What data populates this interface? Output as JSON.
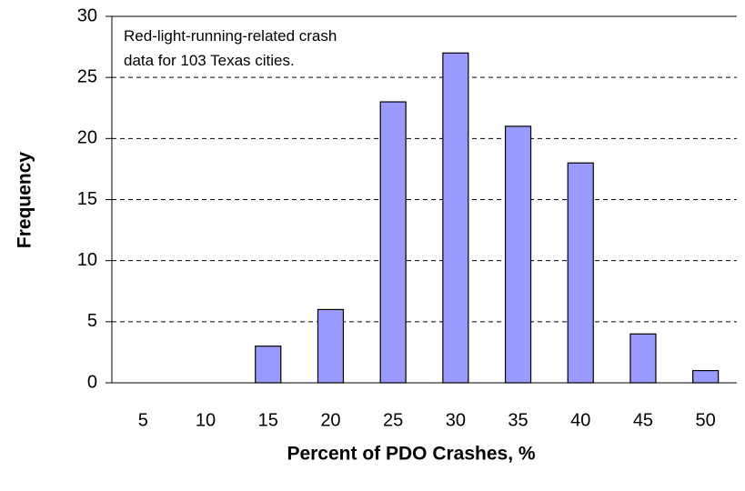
{
  "chart_data": {
    "type": "bar",
    "annotation": [
      "Red-light-running-related crash",
      "data for 103 Texas cities."
    ],
    "x_label": "Percent of PDO Crashes, %",
    "y_label": "Frequency",
    "categories": [
      "5",
      "10",
      "15",
      "20",
      "25",
      "30",
      "35",
      "40",
      "45",
      "50"
    ],
    "values": [
      0,
      0,
      3,
      6,
      23,
      27,
      21,
      18,
      4,
      1
    ],
    "color": "#9999ff",
    "ylim": [
      0,
      30
    ],
    "yticks": [
      0,
      5,
      10,
      15,
      20,
      25,
      30
    ],
    "grid": true
  }
}
